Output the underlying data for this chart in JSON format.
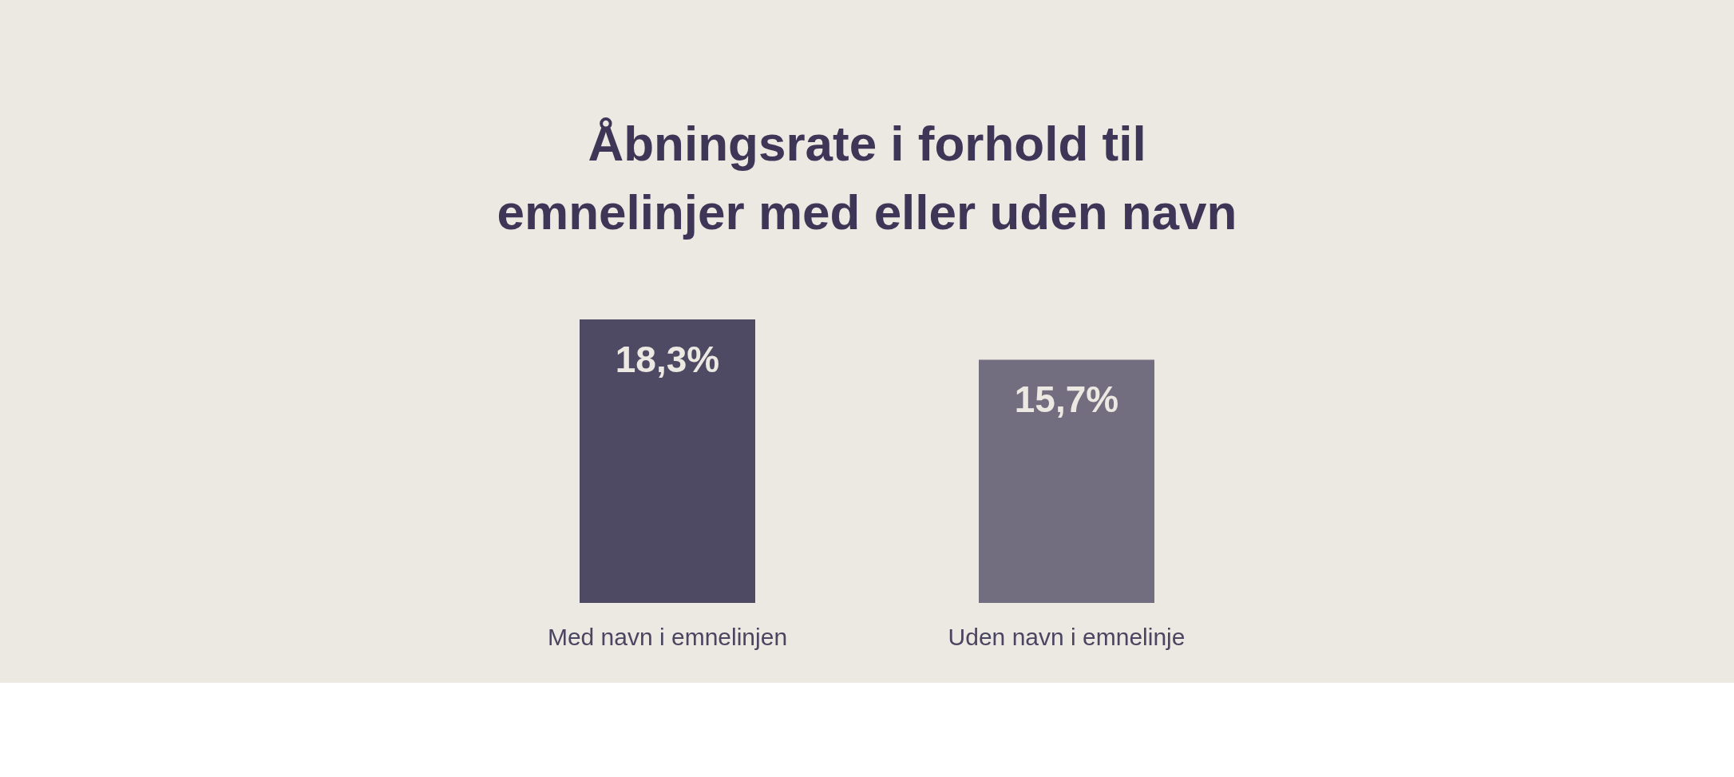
{
  "chart_data": {
    "type": "bar",
    "title": "Åbningsrate i forhold til\nemnelinjer med eller uden navn",
    "categories": [
      "Med navn i emnelinjen",
      "Uden navn i emnelinje"
    ],
    "values": [
      18.3,
      15.7
    ],
    "colors": [
      "#4e4a64",
      "#736d80"
    ],
    "value_labels": [
      "18,3%",
      "15,7%"
    ],
    "legend": false
  }
}
